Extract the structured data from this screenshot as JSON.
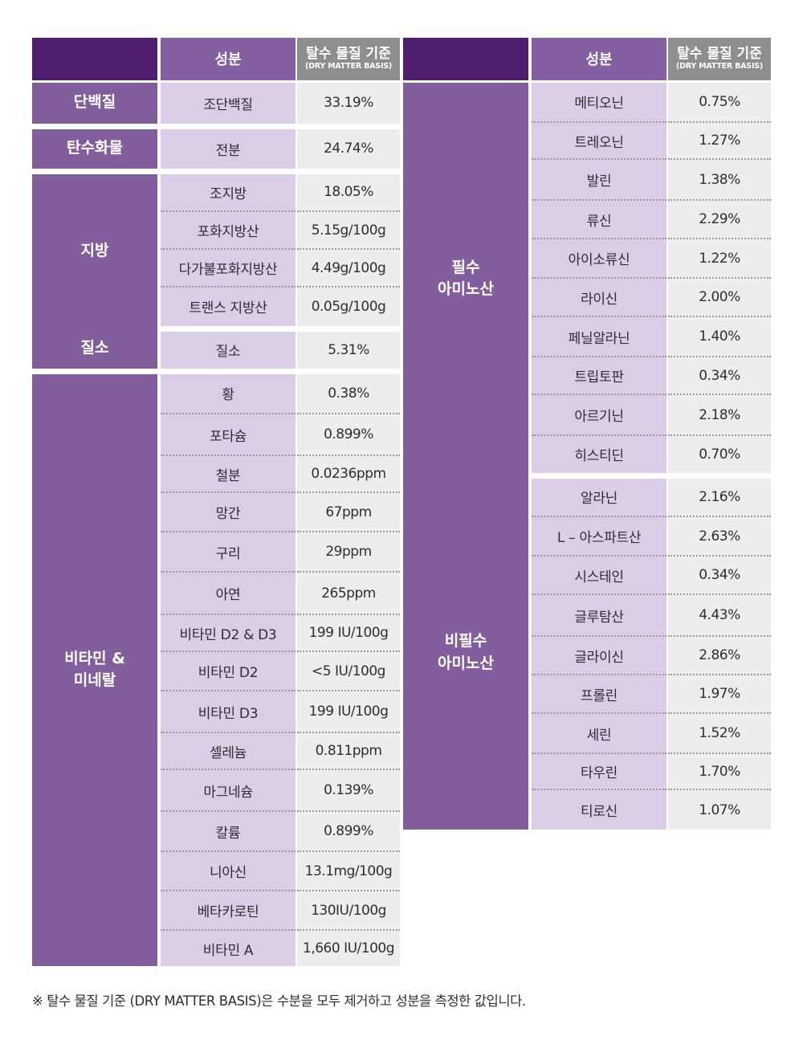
{
  "header": {
    "name_label": "성분",
    "value_label": "탈수 물질 기준",
    "value_sublabel": "(DRY MATTER BASIS)"
  },
  "left_table": {
    "groups": [
      {
        "category": [
          "단백질"
        ],
        "items": [
          {
            "name": "조단백질",
            "value": "33.19%"
          }
        ]
      },
      {
        "category": [
          "탄수화물"
        ],
        "items": [
          {
            "name": "전분",
            "value": "24.74%"
          }
        ]
      },
      {
        "category": [
          "지방"
        ],
        "items": [
          {
            "name": "조지방",
            "value": "18.05%"
          },
          {
            "name": "포화지방산",
            "value": "5.15g/100g"
          },
          {
            "name": "다가불포화지방산",
            "value": "4.49g/100g"
          },
          {
            "name": "트랜스 지방산",
            "value": "0.05g/100g"
          }
        ]
      },
      {
        "category": [
          "질소"
        ],
        "items": [
          {
            "name": "질소",
            "value": "5.31%"
          }
        ]
      },
      {
        "category": [
          "비타민 &",
          "미네랄"
        ],
        "items": [
          {
            "name": "황",
            "value": "0.38%"
          },
          {
            "name": "포타슘",
            "value": "0.899%"
          },
          {
            "name": "철분",
            "value": "0.0236ppm"
          },
          {
            "name": "망간",
            "value": "67ppm"
          },
          {
            "name": "구리",
            "value": "29ppm"
          },
          {
            "name": "아연",
            "value": "265ppm"
          },
          {
            "name": "비타민 D2 & D3",
            "value": "199 IU/100g"
          },
          {
            "name": "비타민 D2",
            "value": "<5 IU/100g"
          },
          {
            "name": "비타민 D3",
            "value": "199 IU/100g"
          },
          {
            "name": "셀레늄",
            "value": "0.811ppm"
          },
          {
            "name": "마그네슘",
            "value": "0.139%"
          },
          {
            "name": "칼륨",
            "value": "0.899%"
          },
          {
            "name": "니아신",
            "value": "13.1mg/100g"
          },
          {
            "name": "베타카로틴",
            "value": "130IU/100g"
          },
          {
            "name": "비타민 A",
            "value": "1,660 IU/100g"
          }
        ]
      }
    ]
  },
  "right_table": {
    "groups": [
      {
        "category": [
          "필수",
          "아미노산"
        ],
        "items": [
          {
            "name": "메티오닌",
            "value": "0.75%"
          },
          {
            "name": "트레오닌",
            "value": "1.27%"
          },
          {
            "name": "발린",
            "value": "1.38%"
          },
          {
            "name": "류신",
            "value": "2.29%"
          },
          {
            "name": "아이소류신",
            "value": "1.22%"
          },
          {
            "name": "라이신",
            "value": "2.00%"
          },
          {
            "name": "페닐알라닌",
            "value": "1.40%"
          },
          {
            "name": "트립토판",
            "value": "0.34%"
          },
          {
            "name": "아르기닌",
            "value": "2.18%"
          },
          {
            "name": "히스티딘",
            "value": "0.70%"
          }
        ]
      },
      {
        "category": [
          "비필수",
          "아미노산"
        ],
        "items": [
          {
            "name": "알라닌",
            "value": "2.16%"
          },
          {
            "name": "L – 아스파트산",
            "value": "2.63%"
          },
          {
            "name": "시스테인",
            "value": "0.34%"
          },
          {
            "name": "글루탐산",
            "value": "4.43%"
          },
          {
            "name": "글라이신",
            "value": "2.86%"
          },
          {
            "name": "프롤린",
            "value": "1.97%"
          },
          {
            "name": "세린",
            "value": "1.52%"
          },
          {
            "name": "타우린",
            "value": "1.70%"
          },
          {
            "name": "티로신",
            "value": "1.07%"
          }
        ]
      }
    ]
  },
  "footnote": "※ 탈수 물질 기준 (DRY MATTER BASIS)은 수분을 모두 제거하고 성분을 측정한 값입니다.",
  "colors": {
    "header_dark": "#4f1c6e",
    "header_purple": "#8460a3",
    "header_gray": "#8e8e8e",
    "category_purple": "#835e9d",
    "name_cell": "#dbcde6",
    "value_cell": "#ededed"
  }
}
